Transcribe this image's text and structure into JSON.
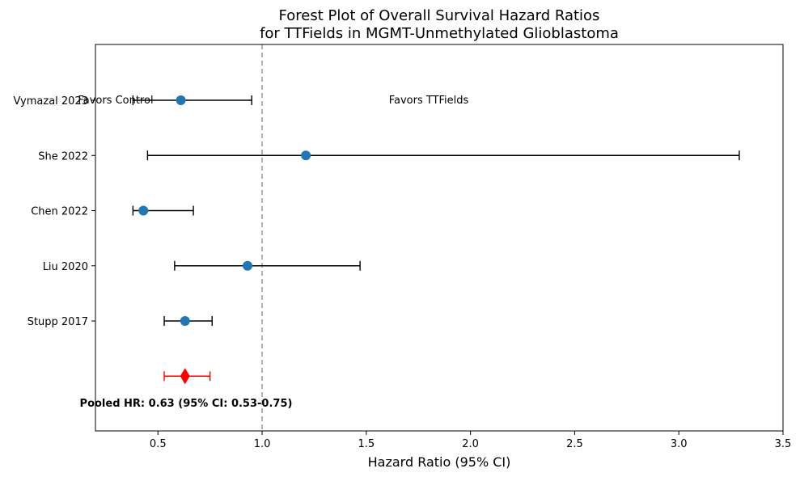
{
  "chart_data": {
    "type": "forest",
    "title_lines": [
      "Forest Plot of Overall Survival Hazard Ratios",
      "for TTFields in MGMT-Unmethylated Glioblastoma"
    ],
    "xlabel": "Hazard Ratio (95% CI)",
    "xlim": [
      0.2,
      3.5
    ],
    "xticks": [
      0.5,
      1.0,
      1.5,
      2.0,
      2.5,
      3.0,
      3.5
    ],
    "xtick_labels": [
      "0.5",
      "1.0",
      "1.5",
      "2.0",
      "2.5",
      "3.0",
      "3.5"
    ],
    "reference_line": 1.0,
    "studies": [
      {
        "label": "Vymazal 2023",
        "hr": 0.61,
        "lower": 0.38,
        "upper": 0.95
      },
      {
        "label": "She 2022",
        "hr": 1.21,
        "lower": 0.45,
        "upper": 3.29
      },
      {
        "label": "Chen 2022",
        "hr": 0.43,
        "lower": 0.38,
        "upper": 0.67
      },
      {
        "label": "Liu 2020",
        "hr": 0.93,
        "lower": 0.58,
        "upper": 1.47
      },
      {
        "label": "Stupp 2017",
        "hr": 0.63,
        "lower": 0.53,
        "upper": 0.76
      }
    ],
    "pooled": {
      "hr": 0.63,
      "lower": 0.53,
      "upper": 0.75
    },
    "pooled_label": "Pooled HR: 0.63 (95% CI: 0.53-0.75)",
    "annotations": {
      "favors_control": "Favors Control",
      "favors_ttfields": "Favors TTFields"
    },
    "colors": {
      "point": "#1f77b4",
      "error_bar": "#000000",
      "pooled": "#ff0000",
      "reference_line": "#999999"
    }
  }
}
